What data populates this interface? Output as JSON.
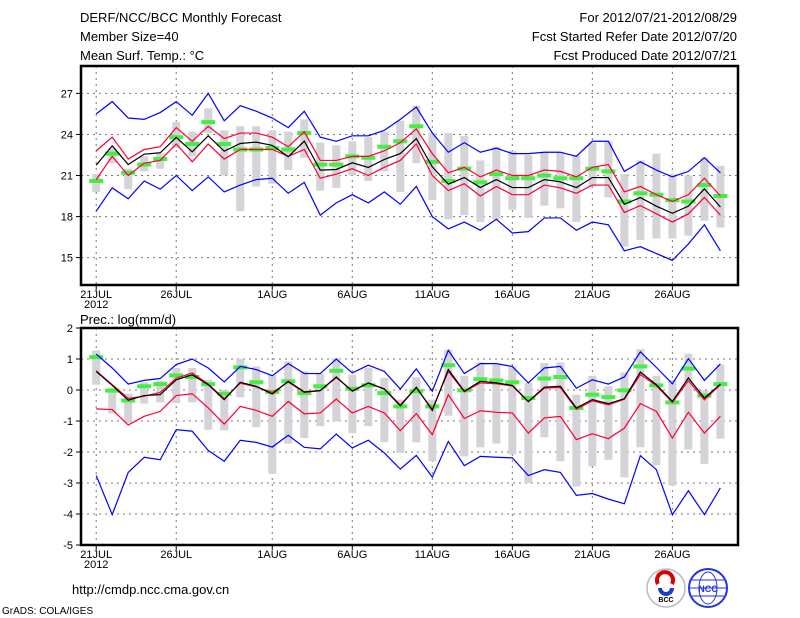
{
  "header": {
    "title": "DERF/NCC/BCC Monthly Forecast",
    "member_size": "Member Size=40",
    "variable": "Mean Surf. Temp.: °C",
    "period": "For 2012/07/21-2012/08/29",
    "start_date": "Fcst Started Refer Date 2012/07/20",
    "produced_date": "Fcst Produced Date 2012/07/21"
  },
  "footer": {
    "url": "http://cmdp.ncc.cma.gov.cn",
    "credit": "GrADS: COLA/IGES",
    "logo_left": "BCC",
    "logo_right": "NCC"
  },
  "colors": {
    "envelope": "#0000ff",
    "spread": "#ff0033",
    "mean": "#000000",
    "member_box": "#d3d3d8",
    "marker": "#44ee44"
  },
  "chart_data": [
    {
      "type": "line",
      "title": "Mean Surf. Temp.: °C",
      "ylabel": "Mean Surf. Temp.: °C",
      "xlim": [
        -0.95,
        40.1
      ],
      "ylim": [
        13,
        29
      ],
      "yticks": [
        15,
        18,
        21,
        24,
        27
      ],
      "xticks": [
        {
          "day": 0,
          "label": "21JUL",
          "sub": "2012"
        },
        {
          "day": 5,
          "label": "26JUL"
        },
        {
          "day": 11,
          "label": "1AUG"
        },
        {
          "day": 16,
          "label": "6AUG"
        },
        {
          "day": 21,
          "label": "11AUG"
        },
        {
          "day": 26,
          "label": "16AUG"
        },
        {
          "day": 31,
          "label": "21AUG"
        },
        {
          "day": 36,
          "label": "26AUG"
        }
      ],
      "grid": true,
      "series": {
        "max": [
          25.5,
          26.4,
          25.2,
          25.1,
          25.6,
          26.4,
          25.4,
          27.0,
          25.0,
          26.1,
          25.7,
          25.2,
          24.5,
          25.7,
          23.8,
          23.5,
          23.9,
          23.9,
          24.3,
          25.1,
          26.0,
          24.1,
          22.7,
          23.4,
          22.7,
          23.0,
          22.6,
          22.6,
          22.7,
          22.7,
          22.4,
          23.5,
          23.5,
          21.3,
          22.0,
          21.4,
          20.9,
          21.3,
          22.3,
          21.2
        ],
        "upper": [
          22.8,
          23.8,
          22.2,
          22.9,
          23.1,
          24.5,
          23.5,
          24.6,
          23.7,
          24.1,
          24.1,
          23.8,
          23.1,
          24.2,
          22.1,
          22.1,
          22.4,
          22.4,
          22.8,
          23.4,
          24.4,
          22.6,
          21.2,
          21.6,
          20.9,
          21.4,
          21.0,
          21.0,
          21.4,
          21.3,
          20.9,
          21.6,
          21.8,
          19.8,
          20.2,
          19.6,
          19.1,
          19.6,
          20.8,
          19.5
        ],
        "mean": [
          21.76,
          23.17,
          21.8,
          22.56,
          22.66,
          23.78,
          22.73,
          23.9,
          22.78,
          23.34,
          23.44,
          23.2,
          22.37,
          23.51,
          21.39,
          21.44,
          21.93,
          21.59,
          22.17,
          22.6,
          23.7,
          21.63,
          20.37,
          20.85,
          20.12,
          20.7,
          20.12,
          20.12,
          20.7,
          20.54,
          20.12,
          20.85,
          20.85,
          18.9,
          19.39,
          18.76,
          18.24,
          18.76,
          20.02,
          18.7
        ],
        "lower": [
          20.7,
          22.4,
          21.0,
          21.9,
          22.1,
          23.3,
          22.0,
          23.3,
          22.2,
          22.9,
          22.9,
          22.9,
          22.4,
          22.9,
          20.8,
          21.1,
          21.5,
          21.0,
          21.6,
          22.1,
          23.3,
          21.0,
          19.9,
          20.4,
          19.5,
          20.2,
          19.6,
          19.6,
          20.3,
          20.1,
          19.7,
          20.3,
          20.3,
          18.3,
          18.8,
          18.2,
          17.6,
          18.2,
          19.4,
          18.1
        ],
        "min": [
          18.4,
          20.1,
          19.3,
          20.6,
          20.0,
          21.0,
          19.9,
          20.9,
          19.8,
          20.3,
          20.7,
          20.8,
          19.7,
          20.5,
          18.1,
          19.0,
          19.6,
          19.0,
          19.8,
          18.9,
          20.2,
          18.0,
          17.1,
          17.6,
          17.0,
          17.8,
          16.8,
          16.9,
          17.9,
          17.9,
          17.0,
          17.6,
          17.4,
          15.5,
          15.8,
          15.3,
          14.8,
          16.0,
          17.4,
          15.5
        ],
        "marker": [
          20.6,
          22.6,
          21.2,
          21.8,
          22.2,
          23.8,
          23.3,
          24.9,
          23.3,
          22.9,
          22.9,
          23.0,
          22.9,
          24.1,
          21.8,
          21.8,
          22.4,
          22.3,
          23.1,
          23.5,
          24.6,
          22.0,
          20.6,
          21.5,
          20.5,
          21.1,
          20.8,
          20.8,
          21.0,
          20.8,
          20.8,
          21.5,
          21.3,
          19.1,
          19.7,
          19.6,
          19.2,
          19.1,
          20.3,
          19.5
        ],
        "box_high": [
          21.1,
          23.0,
          21.5,
          22.4,
          22.6,
          24.9,
          24.2,
          25.9,
          24.3,
          24.6,
          24.6,
          24.3,
          24.2,
          25.1,
          23.4,
          23.2,
          23.5,
          23.8,
          24.2,
          25.0,
          26.1,
          24.1,
          24.1,
          23.9,
          22.1,
          23.1,
          22.8,
          22.5,
          22.7,
          22.7,
          22.5,
          23.4,
          23.5,
          21.1,
          22.1,
          22.6,
          21.1,
          21.0,
          22.3,
          21.7
        ],
        "box_low": [
          19.8,
          21.9,
          20.0,
          21.3,
          21.5,
          23.0,
          22.4,
          24.1,
          21.0,
          18.4,
          20.2,
          20.4,
          21.4,
          22.3,
          19.9,
          20.1,
          21.0,
          20.6,
          21.3,
          19.8,
          21.9,
          19.2,
          17.8,
          18.1,
          17.6,
          17.8,
          18.5,
          17.9,
          18.8,
          18.6,
          17.6,
          20.2,
          19.4,
          15.8,
          16.3,
          16.4,
          16.4,
          16.6,
          17.7,
          17.2
        ]
      }
    },
    {
      "type": "line",
      "title": "Prec.: log(mm/d)",
      "ylabel": "Prec.: log(mm/d)",
      "xlim": [
        -0.95,
        40.1
      ],
      "ylim": [
        -5,
        2
      ],
      "yticks": [
        -5,
        -4,
        -3,
        -2,
        -1,
        0,
        1,
        2
      ],
      "xticks": [
        {
          "day": 0,
          "label": "21JUL",
          "sub": "2012"
        },
        {
          "day": 5,
          "label": "26JUL"
        },
        {
          "day": 11,
          "label": "1AUG"
        },
        {
          "day": 16,
          "label": "6AUG"
        },
        {
          "day": 21,
          "label": "11AUG"
        },
        {
          "day": 26,
          "label": "16AUG"
        },
        {
          "day": 31,
          "label": "21AUG"
        },
        {
          "day": 36,
          "label": "26AUG"
        }
      ],
      "grid": true,
      "series": {
        "max": [
          1.16,
          0.71,
          0.19,
          0.31,
          0.37,
          0.82,
          1.0,
          0.71,
          0.26,
          0.76,
          0.66,
          0.46,
          0.85,
          0.53,
          0.53,
          1.0,
          0.55,
          0.8,
          0.6,
          0.03,
          0.68,
          -0.04,
          1.28,
          0.53,
          0.85,
          0.85,
          0.76,
          0.23,
          0.71,
          0.76,
          0.06,
          0.33,
          0.19,
          0.42,
          1.23,
          0.73,
          0.2,
          1.01,
          0.31,
          0.84
        ],
        "upper": [
          0.62,
          0.17,
          -0.27,
          -0.2,
          -0.08,
          0.38,
          0.55,
          0.19,
          -0.28,
          0.22,
          0.1,
          -0.08,
          0.26,
          -0.08,
          -0.02,
          0.4,
          -0.02,
          0.22,
          0.04,
          -0.48,
          0.07,
          -0.62,
          0.6,
          -0.06,
          0.23,
          0.2,
          0.13,
          -0.38,
          0.06,
          0.08,
          -0.62,
          -0.35,
          -0.48,
          -0.3,
          0.5,
          0.14,
          -0.4,
          0.3,
          -0.32,
          0.17
        ],
        "mean": [
          0.6,
          0.15,
          -0.33,
          -0.18,
          -0.15,
          0.33,
          0.49,
          0.17,
          -0.31,
          0.25,
          0.12,
          -0.13,
          0.28,
          -0.06,
          -0.02,
          0.42,
          -0.04,
          0.23,
          0.03,
          -0.51,
          0.09,
          -0.66,
          0.66,
          -0.04,
          0.28,
          0.23,
          0.15,
          -0.37,
          0.09,
          0.12,
          -0.58,
          -0.31,
          -0.44,
          -0.28,
          0.58,
          0.17,
          -0.37,
          0.39,
          -0.26,
          0.19
        ],
        "lower": [
          -0.61,
          -0.63,
          -1.13,
          -0.85,
          -0.69,
          -0.18,
          -0.12,
          -0.58,
          -1.1,
          -0.53,
          -0.66,
          -0.85,
          -0.37,
          -0.77,
          -0.74,
          -0.29,
          -0.74,
          -0.53,
          -0.74,
          -1.31,
          -0.76,
          -1.44,
          -0.15,
          -0.92,
          -0.67,
          -0.72,
          -0.74,
          -1.39,
          -0.9,
          -0.85,
          -1.6,
          -1.41,
          -1.57,
          -1.23,
          -0.44,
          -0.69,
          -1.55,
          -0.72,
          -1.39,
          -0.85
        ],
        "min": [
          -2.76,
          -4.02,
          -2.66,
          -2.17,
          -2.25,
          -1.28,
          -1.33,
          -1.95,
          -2.3,
          -1.62,
          -1.69,
          -1.84,
          -1.46,
          -1.85,
          -1.9,
          -1.42,
          -1.87,
          -1.62,
          -2.03,
          -2.55,
          -2.11,
          -2.81,
          -1.66,
          -2.44,
          -2.14,
          -2.17,
          -2.19,
          -2.76,
          -2.57,
          -2.66,
          -3.4,
          -3.34,
          -3.52,
          -3.67,
          -2.12,
          -2.57,
          -4.02,
          -3.25,
          -4.02,
          -3.16
        ],
        "marker": [
          1.06,
          -0.02,
          -0.34,
          0.12,
          0.19,
          0.47,
          0.42,
          0.19,
          -0.12,
          0.73,
          0.25,
          -0.06,
          0.28,
          -0.1,
          0.12,
          0.62,
          0.04,
          0.15,
          -0.1,
          -0.53,
          -0.04,
          -0.53,
          0.8,
          -0.01,
          0.35,
          0.31,
          0.25,
          -0.26,
          0.37,
          0.42,
          -0.58,
          -0.15,
          -0.23,
          -0.01,
          0.76,
          0.15,
          -0.4,
          0.69,
          -0.18,
          0.19
        ],
        "box_high": [
          1.27,
          0.06,
          -0.12,
          0.25,
          0.3,
          0.71,
          0.71,
          0.33,
          0.01,
          1.0,
          0.76,
          0.49,
          0.92,
          0.6,
          0.53,
          1.03,
          0.49,
          0.71,
          0.39,
          -0.31,
          0.41,
          -0.31,
          1.3,
          0.46,
          0.89,
          0.82,
          0.76,
          0.23,
          0.87,
          0.89,
          -0.15,
          0.46,
          0.12,
          0.57,
          1.32,
          0.46,
          0.33,
          1.17,
          -0.02,
          0.82
        ],
        "box_low": [
          0.17,
          -0.76,
          -1.06,
          -0.44,
          -0.4,
          -0.42,
          -0.4,
          -1.28,
          -1.3,
          -0.24,
          -1.2,
          -2.7,
          -1.73,
          -1.55,
          -1.17,
          -1.01,
          -1.39,
          -1.17,
          -1.68,
          -2.03,
          -1.69,
          -2.3,
          -0.83,
          -2.14,
          -1.85,
          -1.73,
          -2.08,
          -3.0,
          -1.53,
          -2.3,
          -3.11,
          -2.46,
          -2.25,
          -2.82,
          -1.85,
          -2.43,
          -3.08,
          -1.92,
          -2.38,
          -1.57
        ]
      }
    }
  ]
}
